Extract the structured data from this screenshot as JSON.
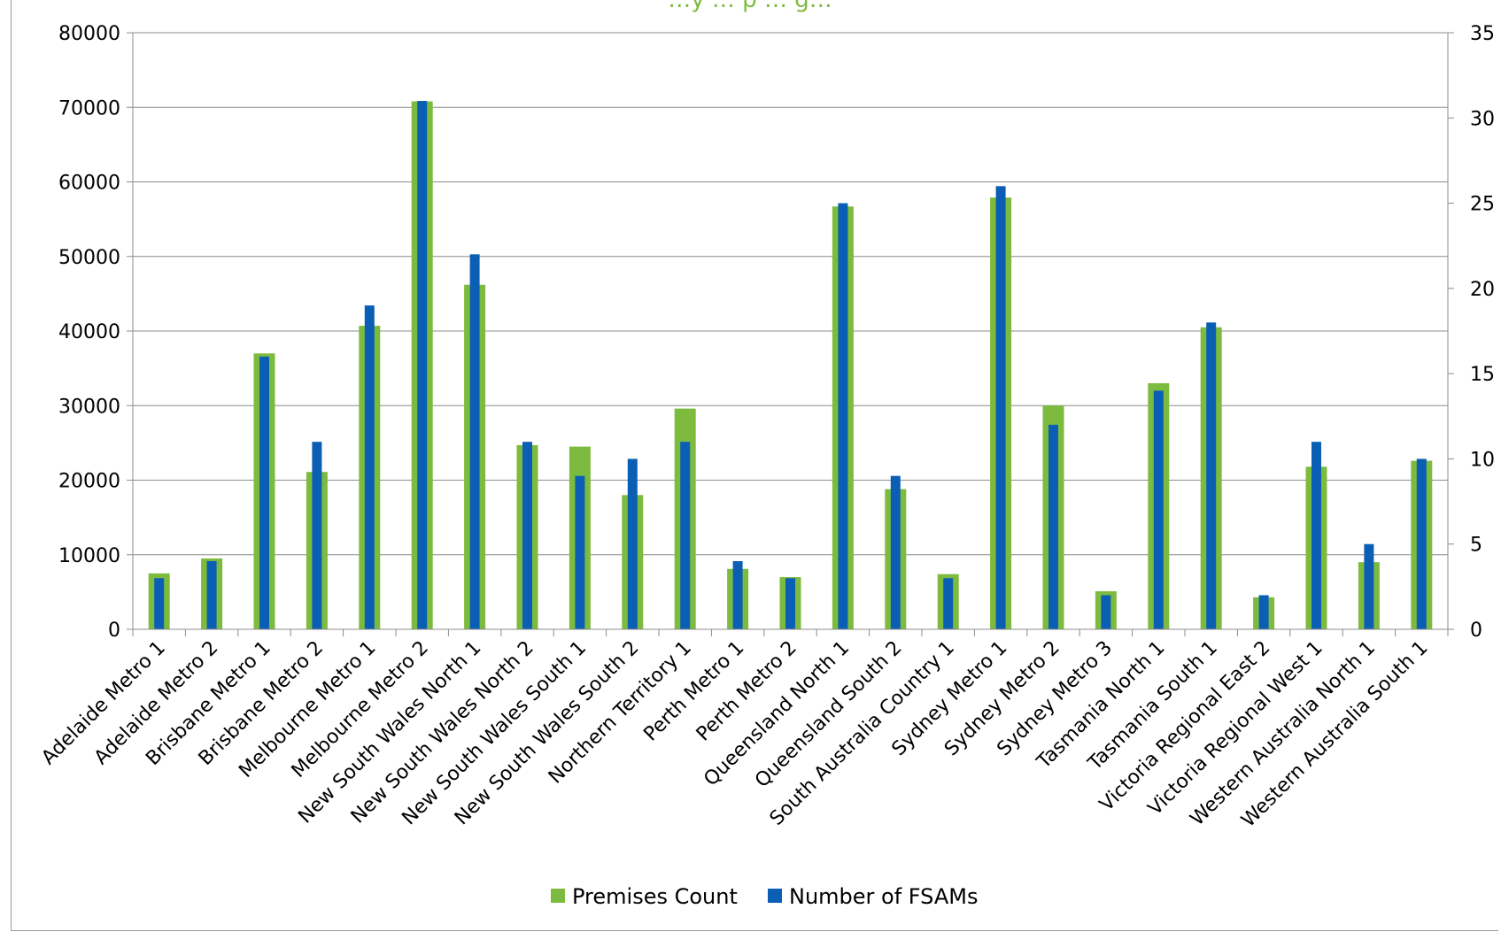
{
  "chart_data": {
    "type": "bar",
    "title": "…y … p … g…",
    "categories": [
      "Adelaide Metro 1",
      "Adelaide Metro 2",
      "Brisbane Metro 1",
      "Brisbane Metro 2",
      "Melbourne Metro 1",
      "Melbourne Metro 2",
      "New South Wales North 1",
      "New South Wales North 2",
      "New South Wales South 1",
      "New South Wales South 2",
      "Northern Territory 1",
      "Perth Metro 1",
      "Perth Metro 2",
      "Queensland North 1",
      "Queensland South 2",
      "South Australia Country 1",
      "Sydney Metro 1",
      "Sydney Metro 2",
      "Sydney Metro 3",
      "Tasmania North 1",
      "Tasmania South 1",
      "Victoria Regional East 2",
      "Victoria Regional West 1",
      "Western Australia North 1",
      "Western Australia South 1"
    ],
    "series": [
      {
        "name": "Premises Count",
        "axis": "left",
        "color": "#7dbb3f",
        "values": [
          7500,
          9500,
          37000,
          21100,
          40700,
          70800,
          46200,
          24700,
          24500,
          18000,
          29600,
          8100,
          7000,
          56700,
          18800,
          7400,
          57900,
          30000,
          5100,
          33000,
          40500,
          4300,
          21800,
          9000,
          22600
        ]
      },
      {
        "name": "Number of FSAMs",
        "axis": "right",
        "color": "#0a5fb4",
        "values": [
          3,
          4,
          16,
          11,
          19,
          31,
          22,
          11,
          9,
          10,
          11,
          4,
          3,
          25,
          9,
          3,
          26,
          12,
          2,
          14,
          18,
          2,
          11,
          5,
          10
        ]
      }
    ],
    "y_left": {
      "min": 0,
      "max": 80000,
      "ticks": [
        "0",
        "10000",
        "20000",
        "30000",
        "40000",
        "50000",
        "60000",
        "70000",
        "80000"
      ]
    },
    "y_right": {
      "min": 0,
      "max": 35,
      "ticks": [
        "0",
        "5",
        "10",
        "15",
        "20",
        "25",
        "30",
        "35"
      ]
    },
    "grid": true,
    "legend_position": "bottom"
  }
}
